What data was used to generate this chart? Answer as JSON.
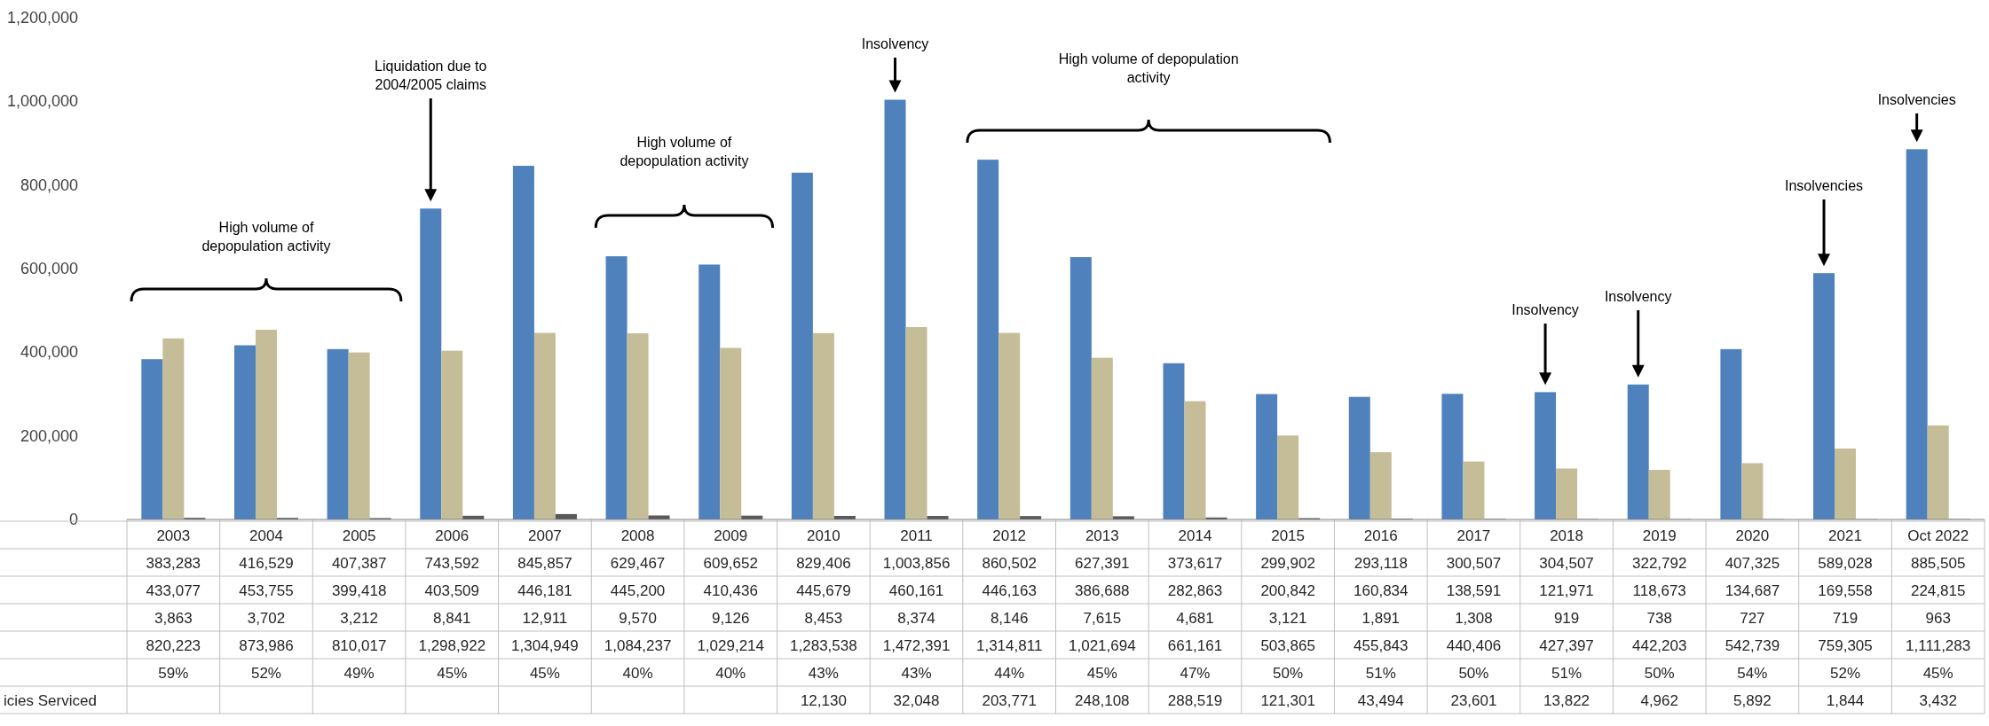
{
  "chart_data": {
    "type": "bar",
    "categories": [
      "2003",
      "2004",
      "2005",
      "2006",
      "2007",
      "2008",
      "2009",
      "2010",
      "2011",
      "2012",
      "2013",
      "2014",
      "2015",
      "2016",
      "2017",
      "2018",
      "2019",
      "2020",
      "2021",
      "Oct 2022"
    ],
    "series": [
      {
        "color": "#4f81bd",
        "values": [
          383283,
          416529,
          407387,
          743592,
          845857,
          629467,
          609652,
          829406,
          1003856,
          860502,
          627391,
          373617,
          299902,
          293118,
          300507,
          304507,
          322792,
          407325,
          589028,
          885505
        ],
        "value_labels": [
          "383,283",
          "416,529",
          "407,387",
          "743,592",
          "845,857",
          "629,467",
          "609,652",
          "829,406",
          "1,003,856",
          "860,502",
          "627,391",
          "373,617",
          "299,902",
          "293,118",
          "300,507",
          "304,507",
          "322,792",
          "407,325",
          "589,028",
          "885,505"
        ]
      },
      {
        "color": "#c4bd97",
        "values": [
          433077,
          453755,
          399418,
          403509,
          446181,
          445200,
          410436,
          445679,
          460161,
          446163,
          386688,
          282863,
          200842,
          160834,
          138591,
          121971,
          118673,
          134687,
          169558,
          224815
        ],
        "value_labels": [
          "433,077",
          "453,755",
          "399,418",
          "403,509",
          "446,181",
          "445,200",
          "410,436",
          "445,679",
          "460,161",
          "446,163",
          "386,688",
          "282,863",
          "200,842",
          "160,834",
          "138,591",
          "121,971",
          "118,673",
          "134,687",
          "169,558",
          "224,815"
        ]
      },
      {
        "color": "#595959",
        "values": [
          3863,
          3702,
          3212,
          8841,
          12911,
          9570,
          9126,
          8453,
          8374,
          8146,
          7615,
          4681,
          3121,
          1891,
          1308,
          919,
          738,
          727,
          719,
          963
        ],
        "value_labels": [
          "3,863",
          "3,702",
          "3,212",
          "8,841",
          "12,911",
          "9,570",
          "9,126",
          "8,453",
          "8,374",
          "8,146",
          "7,615",
          "4,681",
          "3,121",
          "1,891",
          "1,308",
          "919",
          "738",
          "727",
          "719",
          "963"
        ]
      }
    ],
    "ylim": [
      0,
      1200000
    ],
    "yticks": [
      {
        "value": 0,
        "label": "0"
      },
      {
        "value": 200000,
        "label": "200,000"
      },
      {
        "value": 400000,
        "label": "400,000"
      },
      {
        "value": 600000,
        "label": "600,000"
      },
      {
        "value": 800000,
        "label": "800,000"
      },
      {
        "value": 1000000,
        "label": "1,000,000"
      },
      {
        "value": 1200000,
        "label": "1,200,000"
      }
    ],
    "annotations": [
      "High volume of depopulation activity",
      "Liquidation due to 2004/2005 claims",
      "High volume of depopulation activity",
      "Insolvency",
      "High volume of depopulation activity",
      "Insolvency",
      "Insolvency",
      "Insolvencies",
      "Insolvencies",
      "820,223",
      "873,986",
      "810,017",
      "1,298,922",
      "1,304,949",
      "1,084,237",
      "1,029,214",
      "1,283,538",
      "1,472,391",
      "1,314,811",
      "1,021,694",
      "661,161",
      "503,865",
      "455,843",
      "440,406",
      "427,397",
      "442,203",
      "542,739",
      "759,305",
      "1,111,283",
      "59%",
      "52%",
      "49%",
      "45%",
      "45%",
      "40%",
      "40%",
      "43%",
      "43%",
      "44%",
      "45%",
      "47%",
      "50%",
      "51%",
      "50%",
      "51%",
      "50%",
      "54%",
      "52%",
      "45%",
      "icies Serviced",
      "12,130",
      "32,048",
      "203,771",
      "248,108",
      "288,519",
      "121,301",
      "43,494",
      "23,601",
      "13,822",
      "4,962",
      "5,892",
      "1,844",
      "3,432"
    ]
  }
}
